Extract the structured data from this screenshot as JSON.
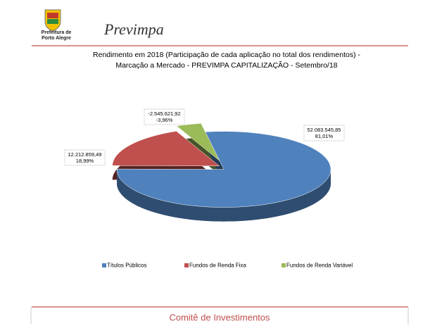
{
  "header": {
    "org_line1": "Prefeitura de",
    "org_line2": "Porto Alegre",
    "brand": "Previmpa"
  },
  "chart_data": {
    "type": "pie",
    "title_line1": "Rendimento em 2018 (Participação de cada aplicação no total dos rendimentos) -",
    "title_line2": "Marcação a Mercado - PREVIMPA CAPITALIZAÇÃO - Setembro/18",
    "categories": [
      "Títulos Públicos",
      "Fundos de Renda Fixa",
      "Fundos de Renda Variável"
    ],
    "values": [
      52083545.85,
      12212859.49,
      -2545621.92
    ],
    "value_labels": [
      "52.083.545,85",
      "12.212.859,49",
      "-2.545.621,92"
    ],
    "percentages": [
      81.01,
      18.99,
      -3.96
    ],
    "percentage_labels": [
      "81,01%",
      "18,99%",
      "-3,96%"
    ],
    "colors": [
      "#4f81bd",
      "#c0504d",
      "#9bbb59"
    ],
    "legend": "bottom"
  },
  "footer": {
    "text": "Comitê de Investimentos"
  }
}
